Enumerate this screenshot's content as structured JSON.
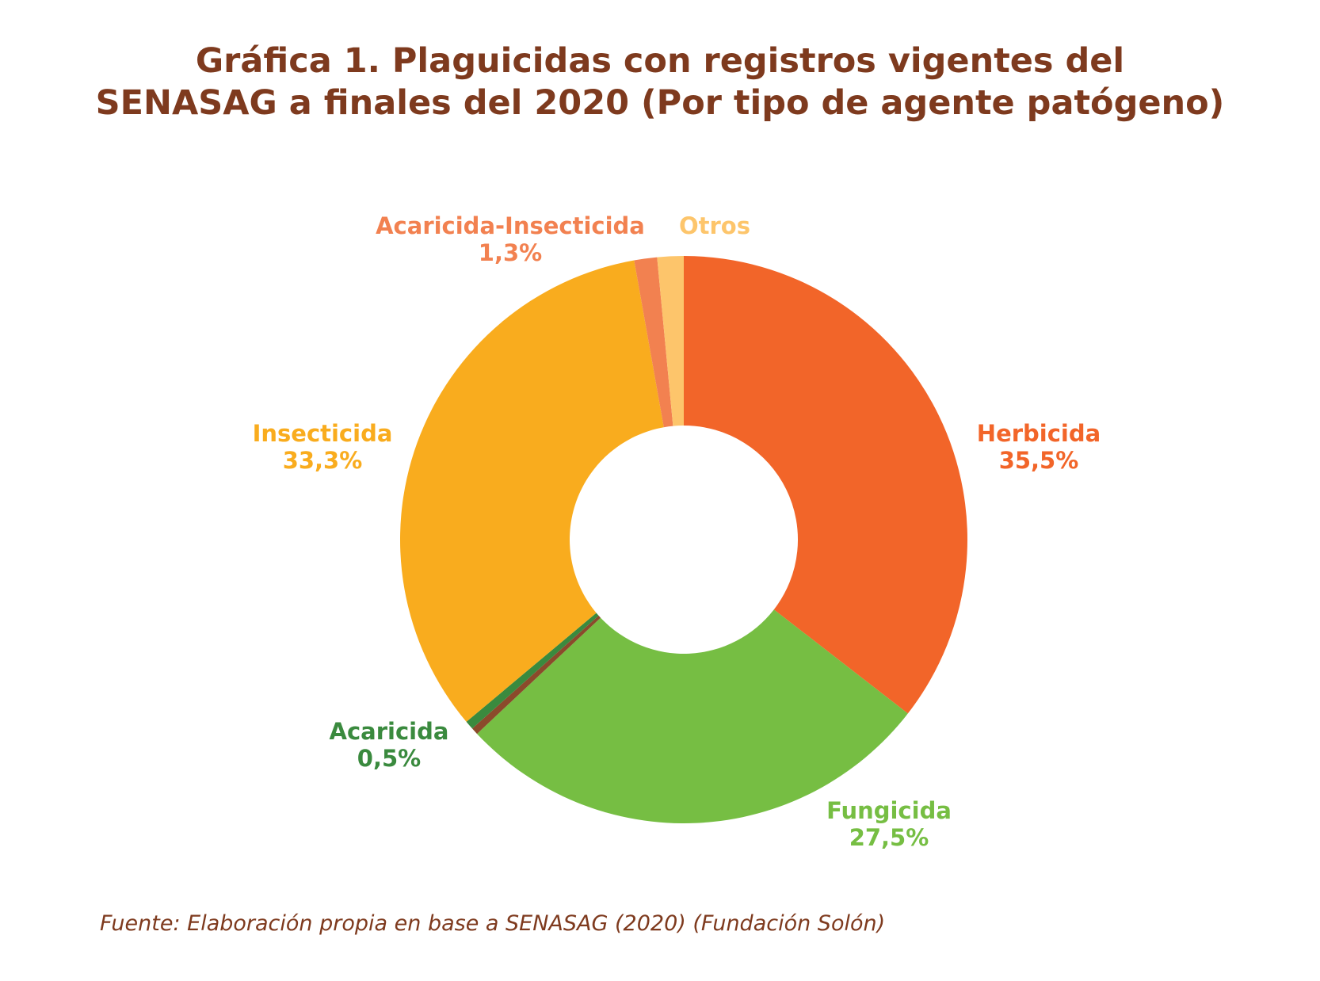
{
  "chart_data": {
    "type": "donut",
    "title": [
      "Gráfica 1. Plaguicidas con registros vigentes del",
      "SENASAG a finales del 2020 (Por tipo de agente patógeno)"
    ],
    "categories": [
      "Herbicida",
      "Fungicida",
      null,
      "Acaricida",
      "Insecticida",
      "Acaricida-Insecticida",
      "Otros"
    ],
    "values": [
      35.5,
      27.5,
      0.4,
      0.5,
      33.3,
      1.3,
      1.5
    ],
    "value_labels": [
      "35,5%",
      "27,5%",
      null,
      "0,5%",
      "33,3%",
      "1,3%",
      null
    ],
    "colors": [
      "#F26529",
      "#76BE43",
      "#8B4A2B",
      "#3A8A3E",
      "#F9AC1E",
      "#F28150",
      "#FDC56B"
    ],
    "source": "Fuente: Elaboración propia en base a SENASAG (2020) (Fundación Solón)"
  }
}
